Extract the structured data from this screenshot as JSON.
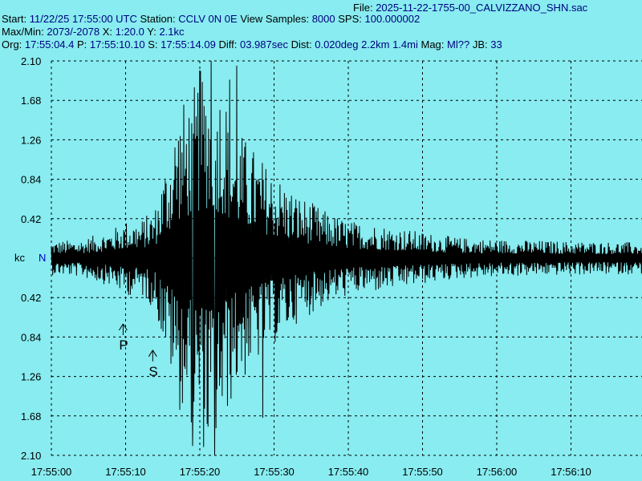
{
  "header": {
    "file_label": "File:",
    "file_value": "2025-11-22-1755-00_CALVIZZANO_SHN.sac",
    "start_label": "Start:",
    "start_value": "11/22/25 17:55:00 UTC",
    "station_label": "Station:",
    "station_value": "CCLV 0N 0E",
    "view_samples_label": "View Samples:",
    "view_samples_value": "8000",
    "sps_label": "SPS:",
    "sps_value": "100.000002",
    "maxmin_label": "Max/Min:",
    "maxmin_value": "2073/-2078",
    "x_label": "X:",
    "x_value": "1:20.0",
    "y_label": "Y:",
    "y_value": "2.1kc",
    "org_label": "Org:",
    "org_value": "17:55:04.4",
    "p_label": "P:",
    "p_value": "17:55:10.10",
    "s_label": "S:",
    "s_value": "17:55:14.09",
    "diff_label": "Diff:",
    "diff_value": "03.987sec",
    "dist_label": "Dist:",
    "dist_value": "0.020deg 2.2km 1.4mi",
    "mag_label": "Mag:",
    "mag_value": "Ml??",
    "jb_label": "JB:",
    "jb_value": "33"
  },
  "chart_data": {
    "type": "line",
    "ylabel": "kc",
    "channel_label": "N",
    "y_tick_labels": [
      "2.10",
      "1.68",
      "1.26",
      "0.84",
      "0.42",
      "",
      "0.42",
      "0.84",
      "1.26",
      "1.68",
      "2.10"
    ],
    "ylim": [
      -2.1,
      2.1
    ],
    "x_tick_labels": [
      "17:55:00",
      "17:55:10",
      "17:55:20",
      "17:55:30",
      "17:55:40",
      "17:55:50",
      "17:56:00",
      "17:56:10"
    ],
    "xlim_seconds": [
      0,
      80
    ],
    "grid": true,
    "phase_markers": [
      {
        "label": "P",
        "time_seconds": 10.1
      },
      {
        "label": "S",
        "time_seconds": 14.09
      }
    ],
    "envelope": {
      "time_seconds": [
        0,
        4,
        8,
        10,
        12,
        14,
        15,
        16,
        17,
        18,
        19,
        20,
        21,
        22,
        23,
        24,
        25,
        27,
        29,
        31,
        33,
        35,
        37,
        40,
        45,
        50,
        55,
        60,
        70,
        80
      ],
      "amplitude_kc": [
        0.18,
        0.2,
        0.3,
        0.4,
        0.4,
        0.55,
        0.9,
        1.2,
        1.6,
        1.7,
        1.8,
        2.0,
        2.1,
        2.0,
        1.9,
        1.6,
        1.4,
        1.2,
        1.0,
        0.85,
        0.7,
        0.6,
        0.5,
        0.4,
        0.35,
        0.28,
        0.22,
        0.2,
        0.18,
        0.17
      ]
    },
    "peaks": [
      {
        "time_seconds": 20.0,
        "value_kc": 2.0
      },
      {
        "time_seconds": 21.5,
        "value_kc": 2.1
      },
      {
        "time_seconds": 22.0,
        "value_kc": -2.1
      },
      {
        "time_seconds": 19.0,
        "value_kc": -2.0
      },
      {
        "time_seconds": 24.0,
        "value_kc": 1.9
      },
      {
        "time_seconds": 25.0,
        "value_kc": 2.05
      },
      {
        "time_seconds": 28.5,
        "value_kc": -1.7
      }
    ]
  }
}
